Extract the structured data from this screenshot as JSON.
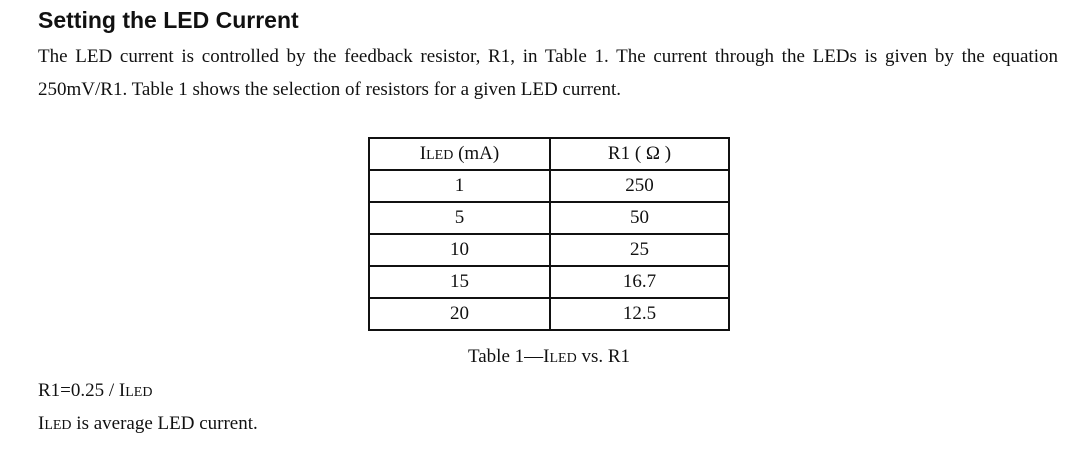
{
  "heading": "Setting the LED Current",
  "paragraph": "The LED current is controlled by the feedback resistor, R1, in Table 1. The current through the LEDs is given by the equation 250mV/R1. Table 1 shows the selection of resistors for a given LED current.",
  "table": {
    "headers": [
      {
        "main": "I",
        "sub": "LED",
        "rest": " (mA)"
      },
      {
        "text": "R1 ( Ω )"
      }
    ],
    "rows": [
      [
        "1",
        "250"
      ],
      [
        "5",
        "50"
      ],
      [
        "10",
        "25"
      ],
      [
        "15",
        "16.7"
      ],
      [
        "20",
        "12.5"
      ]
    ]
  },
  "caption": {
    "pre": "Table 1—I",
    "sub": "LED",
    "post": " vs. R1"
  },
  "formula": {
    "pre": "R1=0.25 / I",
    "sub": "LED"
  },
  "note": {
    "pre": "I",
    "sub": "LED",
    "post": " is average LED current."
  }
}
